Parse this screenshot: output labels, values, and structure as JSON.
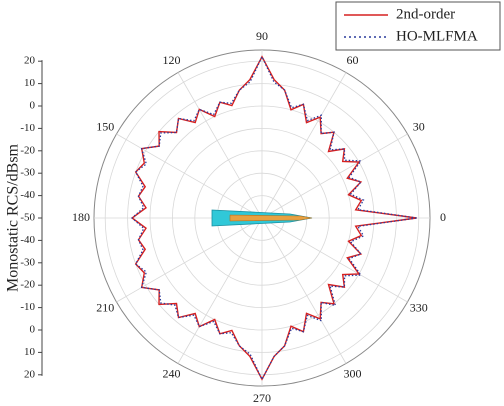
{
  "chart_data": {
    "type": "polar",
    "y_label": "Monostatic RCS/dBsm",
    "theta": [
      0,
      5,
      10,
      15,
      20,
      25,
      30,
      35,
      40,
      45,
      50,
      55,
      60,
      65,
      70,
      75,
      80,
      85,
      90,
      95,
      100,
      105,
      110,
      115,
      120,
      125,
      130,
      135,
      140,
      145,
      150,
      155,
      160,
      165,
      170,
      175,
      180,
      185,
      190,
      195,
      200,
      205,
      210,
      215,
      220,
      225,
      230,
      235,
      240,
      245,
      250,
      255,
      260,
      265,
      270,
      275,
      280,
      285,
      290,
      295,
      300,
      305,
      310,
      315,
      320,
      325,
      330,
      335,
      340,
      345,
      350,
      355
    ],
    "thetaticks": [
      0,
      30,
      60,
      90,
      120,
      150,
      180,
      210,
      240,
      270,
      300,
      330
    ],
    "rlim": [
      -50,
      25
    ],
    "rticks": [
      -50,
      -40,
      -30,
      -20,
      -10,
      0,
      10,
      20
    ],
    "grid": true,
    "legend": "top-right",
    "series": [
      {
        "name": "2nd-order",
        "color": "#d62020",
        "dash": "solid",
        "values": [
          19,
          -8,
          -5,
          -10,
          -3,
          -8,
          0,
          -6,
          -2,
          -8,
          0,
          -4,
          2,
          -3,
          4,
          0,
          8,
          12,
          22,
          12,
          8,
          2,
          5,
          0,
          6,
          2,
          8,
          4,
          10,
          6,
          12,
          8,
          10,
          4,
          6,
          2,
          8,
          2,
          6,
          4,
          10,
          8,
          12,
          6,
          10,
          4,
          8,
          2,
          6,
          0,
          5,
          2,
          8,
          12,
          22,
          12,
          8,
          0,
          4,
          -3,
          2,
          -4,
          0,
          -8,
          -2,
          -6,
          0,
          -8,
          -3,
          -10,
          -5,
          -8
        ]
      },
      {
        "name": "HO-MLFMA",
        "color": "#2a3a9c",
        "dash": "dotted",
        "values": [
          19,
          -7,
          -4,
          -9,
          -3,
          -7,
          1,
          -5,
          -2,
          -7,
          0,
          -4,
          3,
          -2,
          4,
          1,
          8,
          11,
          22,
          11,
          8,
          3,
          5,
          1,
          6,
          3,
          8,
          4,
          9,
          6,
          12,
          7,
          10,
          5,
          6,
          3,
          8,
          3,
          6,
          5,
          10,
          7,
          12,
          6,
          9,
          5,
          8,
          3,
          6,
          1,
          5,
          3,
          8,
          11,
          22,
          12,
          8,
          1,
          4,
          -2,
          3,
          -4,
          1,
          -7,
          -2,
          -5,
          1,
          -7,
          -3,
          -9,
          -4,
          -7
        ]
      }
    ]
  }
}
